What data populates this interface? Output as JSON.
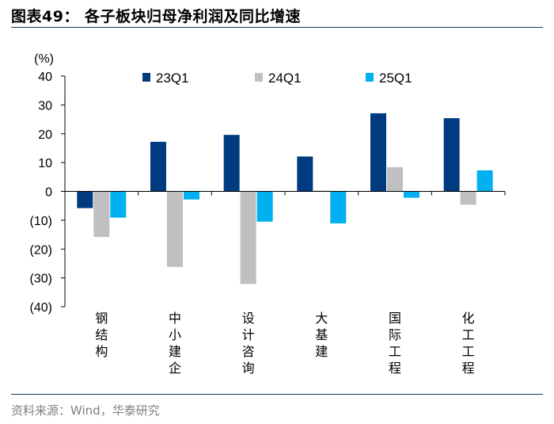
{
  "figure": {
    "title": "图表49： 各子板块归母净利润及同比增速",
    "source": "资料来源：Wind，华泰研究"
  },
  "chart_data": {
    "type": "bar",
    "unit_label": "(%)",
    "categories": [
      "钢结构",
      "中小建企",
      "设计咨询",
      "大基建",
      "国际工程",
      "化工工程"
    ],
    "series": [
      {
        "name": "23Q1",
        "color": "#003a80",
        "values": [
          -5.8,
          17.2,
          19.6,
          12.1,
          27.1,
          25.4
        ]
      },
      {
        "name": "24Q1",
        "color": "#c0c0c0",
        "values": [
          -15.8,
          -26.2,
          -32.1,
          0.3,
          8.4,
          -4.6
        ]
      },
      {
        "name": "25Q1",
        "color": "#00b0f0",
        "values": [
          -9.1,
          -2.8,
          -10.5,
          -11.1,
          -2.2,
          7.3
        ]
      }
    ],
    "ylim": [
      -40,
      40
    ],
    "yticks": [
      40,
      30,
      20,
      10,
      0,
      -10,
      -20,
      -30,
      -40
    ],
    "ytick_labels": [
      "40",
      "30",
      "20",
      "10",
      "0",
      "(10)",
      "(20)",
      "(30)",
      "(40)"
    ],
    "legend_position": "top",
    "grid": false
  }
}
